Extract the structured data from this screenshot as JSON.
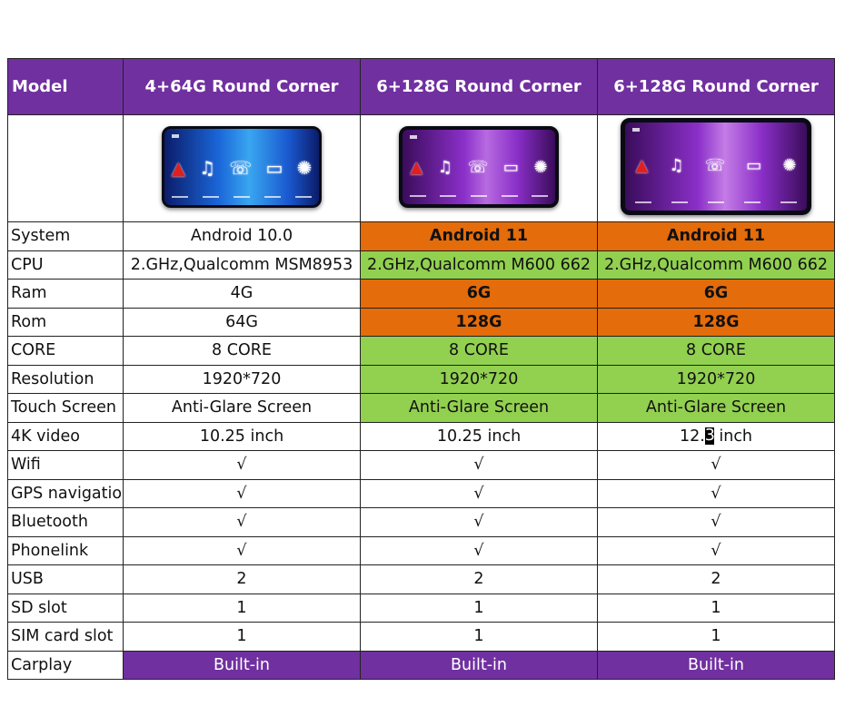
{
  "header": {
    "label": "Model",
    "models": [
      "4+64G Round Corner",
      "6+128G Round Corner",
      "6+128G Round Corner"
    ]
  },
  "screens": [
    {
      "icons": [
        "nav-arrow-icon",
        "music-icon",
        "phone-icon",
        "car-icon",
        "gear-icon"
      ]
    },
    {
      "icons": [
        "nav-arrow-icon",
        "music-icon",
        "phone-icon",
        "car-icon",
        "gear-icon"
      ]
    },
    {
      "icons": [
        "nav-arrow-icon",
        "music-icon",
        "phone-icon",
        "car-icon",
        "gear-icon"
      ]
    }
  ],
  "rows": [
    {
      "label": "System",
      "values": [
        "Android 10.0",
        "Android 11",
        "Android 11"
      ]
    },
    {
      "label": "CPU",
      "values": [
        "2.GHz,Qualcomm MSM8953",
        "2.GHz,Qualcomm M600 662",
        "2.GHz,Qualcomm M600 662"
      ]
    },
    {
      "label": "Ram",
      "values": [
        "4G",
        "6G",
        "6G"
      ]
    },
    {
      "label": "Rom",
      "values": [
        "64G",
        "128G",
        "128G"
      ]
    },
    {
      "label": "CORE",
      "values": [
        "8 CORE",
        "8 CORE",
        "8 CORE"
      ]
    },
    {
      "label": "Resolution",
      "values": [
        "1920*720",
        "1920*720",
        "1920*720"
      ]
    },
    {
      "label": "Touch Screen",
      "values": [
        "Anti-Glare Screen",
        "Anti-Glare Screen",
        "Anti-Glare Screen"
      ]
    },
    {
      "label": "4K video",
      "values": [
        "10.25 inch",
        "10.25 inch",
        "12.3 inch"
      ]
    },
    {
      "label": "Wifi",
      "values": [
        "√",
        "√",
        "√"
      ]
    },
    {
      "label": "GPS navigatio",
      "values": [
        "√",
        "√",
        "√"
      ]
    },
    {
      "label": "Bluetooth",
      "values": [
        "√",
        "√",
        "√"
      ]
    },
    {
      "label": "Phonelink",
      "values": [
        "√",
        "√",
        "√"
      ]
    },
    {
      "label": "USB",
      "values": [
        "2",
        "2",
        "2"
      ]
    },
    {
      "label": "SD slot",
      "values": [
        "1",
        "1",
        "1"
      ]
    },
    {
      "label": "SIM card slot",
      "values": [
        "1",
        "1",
        "1"
      ]
    },
    {
      "label": "Carplay",
      "values": [
        "Built-in",
        "Built-in",
        "Built-in"
      ]
    }
  ],
  "special": {
    "video_col3_prefix": "12.",
    "video_col3_cursor": "3",
    "video_col3_suffix": " inch"
  },
  "colors": {
    "purple": "#7030a0",
    "orange": "#e46c0a",
    "green": "#92d050"
  }
}
